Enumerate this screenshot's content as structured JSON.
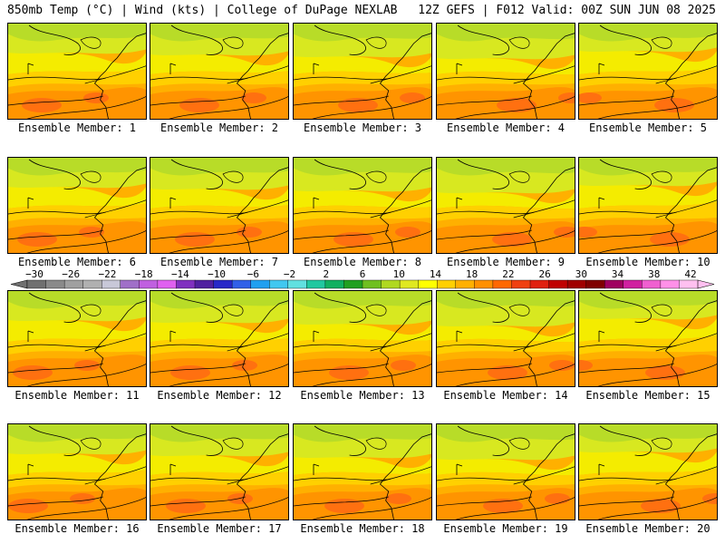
{
  "header": {
    "left": "850mb Temp (°C) | Wind (kts) | College of DuPage NEXLAB",
    "right": "12Z GEFS | F012 Valid: 00Z SUN JUN 08 2025"
  },
  "panel_label_prefix": "Ensemble Member: ",
  "members": [
    {
      "label": "Ensemble Member: 1"
    },
    {
      "label": "Ensemble Member: 2"
    },
    {
      "label": "Ensemble Member: 3"
    },
    {
      "label": "Ensemble Member: 4"
    },
    {
      "label": "Ensemble Member: 5"
    },
    {
      "label": "Ensemble Member: 6"
    },
    {
      "label": "Ensemble Member: 7"
    },
    {
      "label": "Ensemble Member: 8"
    },
    {
      "label": "Ensemble Member: 9"
    },
    {
      "label": "Ensemble Member: 10"
    },
    {
      "label": "Ensemble Member: 11"
    },
    {
      "label": "Ensemble Member: 12"
    },
    {
      "label": "Ensemble Member: 13"
    },
    {
      "label": "Ensemble Member: 14"
    },
    {
      "label": "Ensemble Member: 15"
    },
    {
      "label": "Ensemble Member: 16"
    },
    {
      "label": "Ensemble Member: 17"
    },
    {
      "label": "Ensemble Member: 18"
    },
    {
      "label": "Ensemble Member: 19"
    },
    {
      "label": "Ensemble Member: 20"
    }
  ],
  "colorbar": {
    "ticks": [
      "−30",
      "−26",
      "−22",
      "−18",
      "−14",
      "−10",
      "−6",
      "−2",
      "2",
      "6",
      "10",
      "14",
      "18",
      "22",
      "26",
      "30",
      "34",
      "38",
      "42"
    ],
    "colors": [
      "#707070",
      "#8a8a8a",
      "#a0a0a0",
      "#b0b0b0",
      "#c8c8d8",
      "#a070c8",
      "#c060e0",
      "#e060f0",
      "#8030c0",
      "#5020a0",
      "#2828c8",
      "#3060e8",
      "#20a0f0",
      "#40c8f0",
      "#60e0e0",
      "#20c8a0",
      "#10b060",
      "#20a020",
      "#70c020",
      "#b0d820",
      "#e0e820",
      "#ffff00",
      "#ffd000",
      "#ffb000",
      "#ff9000",
      "#ff6800",
      "#f04010",
      "#e02010",
      "#c00000",
      "#a00000",
      "#800000",
      "#a00060",
      "#d020a0",
      "#f060d0",
      "#ff90e8",
      "#ffc0f0"
    ]
  },
  "field_colors": {
    "green": "#b8dc28",
    "yellow_green": "#d8e820",
    "yellow": "#f4ec00",
    "gold": "#ffd000",
    "orange_light": "#ffb000",
    "orange": "#ff9400",
    "orange_dark": "#ff7010"
  }
}
